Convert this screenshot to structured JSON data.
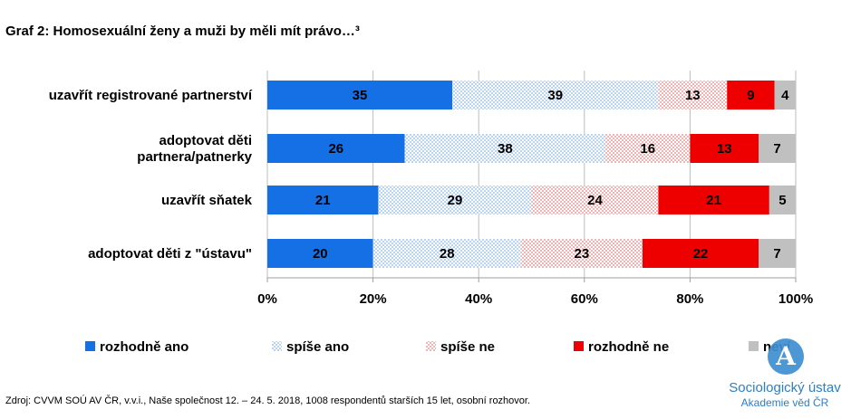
{
  "title": "Graf 2: Homosexuální ženy a muži by měli mít právo…³",
  "source": "Zdroj: CVVM SOÚ AV ČR, v.v.i., Naše společnost 12. – 24. 5. 2018, 1008 respondentů starších 15 let, osobní rozhovor.",
  "logo": {
    "initial": "A",
    "name": "Sociologický ústav",
    "sub": "Akademie věd ČR"
  },
  "chart_data": {
    "type": "bar",
    "orientation": "horizontal",
    "stacked": true,
    "categories": [
      [
        "uzavřít registrované partnerství"
      ],
      [
        "adoptovat děti",
        "partnera/patnerky"
      ],
      [
        "uzavřít sňatek"
      ],
      [
        "adoptovat děti z \"ústavu\""
      ]
    ],
    "series": [
      {
        "name": "rozhodně ano",
        "color": "#1570e6",
        "pattern": "solid",
        "values": [
          35,
          26,
          21,
          20
        ]
      },
      {
        "name": "spíše ano",
        "color": "#b7d4f5",
        "pattern": "checker",
        "values": [
          39,
          38,
          29,
          28
        ]
      },
      {
        "name": "spíše ne",
        "color": "#f4b2b2",
        "pattern": "checker",
        "values": [
          13,
          16,
          24,
          23
        ]
      },
      {
        "name": "rozhodně ne",
        "color": "#ee0000",
        "pattern": "solid",
        "values": [
          9,
          13,
          21,
          22
        ]
      },
      {
        "name": "neví",
        "color": "#c0c0c0",
        "pattern": "solid",
        "values": [
          4,
          7,
          5,
          7
        ]
      }
    ],
    "xlim": [
      0,
      100
    ],
    "xticks": [
      "0%",
      "20%",
      "40%",
      "60%",
      "80%",
      "100%"
    ],
    "grid": "vertical",
    "legend": "bottom"
  }
}
